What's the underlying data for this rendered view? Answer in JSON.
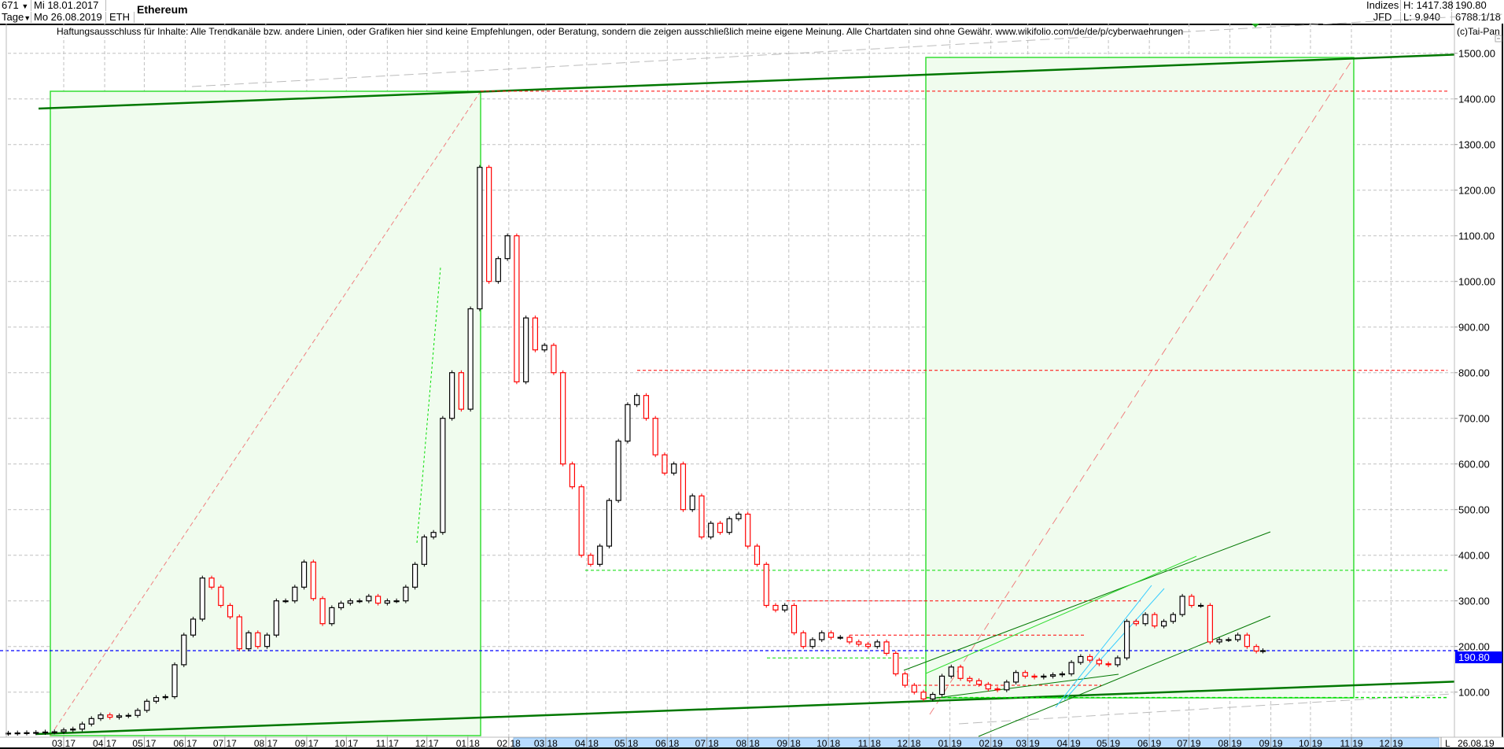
{
  "header": {
    "bars_count": "671",
    "period": "Tage",
    "start_date": "Mi 18.01.2017",
    "end_date": "Mo 26.08.2019",
    "symbol": "ETH",
    "name": "Ethereum",
    "market": "Indizes",
    "source": "JFD",
    "high": "H: 1417.38",
    "low": "L: 9.940",
    "last": "190.80",
    "info": "6788.1/18"
  },
  "disclaimer": "Haftungsausschluss für Inhalte: Alle Trendkanäle bzw. andere Linien, oder Grafiken hier sind keine Empfehlungen, oder Beratung, sondern die zeigen ausschließlich meine eigene Meinung. Alle Chartdaten sind ohne Gewähr.  www.wikifolio.com/de/de/p/cyberwaehrungen",
  "copyright": "(c)Tai-Pan",
  "axis_footer": {
    "mode": "L",
    "last_date": "26.08.19"
  },
  "colors": {
    "up": "#000000",
    "down": "#ff0000",
    "last_price": "#0000ff",
    "channel": "#007700",
    "box_fill": "#f0fcee",
    "box_edge": "#33dd33",
    "highlight": "#b8dcff",
    "cyan": "#33ccff"
  },
  "chart_data": {
    "type": "candlestick",
    "title": "Ethereum",
    "ylim": [
      0,
      1500
    ],
    "yticks": [
      100,
      200,
      300,
      400,
      500,
      600,
      700,
      800,
      900,
      1000,
      1100,
      1200,
      1300,
      1400,
      1500
    ],
    "ytick_labels": [
      "100.00",
      "200.00",
      "300.00",
      "400.00",
      "500.00",
      "600.00",
      "700.00",
      "800.00",
      "900.00",
      "1000.00",
      "1100.00",
      "1200.00",
      "1300.00",
      "1400.00",
      "1500.00"
    ],
    "xtick_dates": [
      "2017-03-01",
      "2017-04-01",
      "2017-05-01",
      "2017-06-01",
      "2017-07-01",
      "2017-08-01",
      "2017-09-01",
      "2017-10-01",
      "2017-11-01",
      "2017-12-01",
      "2018-01-01",
      "2018-02-01",
      "2018-03-01",
      "2018-04-01",
      "2018-05-01",
      "2018-06-01",
      "2018-07-01",
      "2018-08-01",
      "2018-09-01",
      "2018-10-01",
      "2018-11-01",
      "2018-12-01",
      "2019-01-01",
      "2019-02-01",
      "2019-03-01",
      "2019-04-01",
      "2019-05-01",
      "2019-06-01",
      "2019-07-01",
      "2019-08-01",
      "2019-09-01",
      "2019-10-01",
      "2019-11-01",
      "2019-12-01"
    ],
    "xtick_labels": [
      "03 17",
      "04 17",
      "05 17",
      "06 17",
      "07 17",
      "08 17",
      "09 17",
      "10 17",
      "11 17",
      "12 17",
      "01 18",
      "02 18",
      "03 18",
      "04 18",
      "05 18",
      "06 18",
      "07 18",
      "08 18",
      "09 18",
      "10 18",
      "11 18",
      "12 18",
      "01 19",
      "02 19",
      "03 19",
      "04 19",
      "05 19",
      "06 19",
      "07 19",
      "08 19",
      "09 19",
      "10 19",
      "11 19",
      "12 19"
    ],
    "grid": true,
    "last_price": 190.8,
    "last_price_label": "190.80",
    "reference_levels": {
      "red": [
        1417,
        805,
        300,
        225
      ],
      "green": [
        367,
        175,
        88
      ]
    },
    "x": [
      "2017-01-18",
      "2017-01-25",
      "2017-02-01",
      "2017-02-08",
      "2017-02-15",
      "2017-02-22",
      "2017-03-01",
      "2017-03-08",
      "2017-03-15",
      "2017-03-22",
      "2017-03-29",
      "2017-04-05",
      "2017-04-12",
      "2017-04-19",
      "2017-04-26",
      "2017-05-03",
      "2017-05-10",
      "2017-05-17",
      "2017-05-24",
      "2017-05-31",
      "2017-06-07",
      "2017-06-14",
      "2017-06-21",
      "2017-06-28",
      "2017-07-05",
      "2017-07-12",
      "2017-07-19",
      "2017-07-26",
      "2017-08-02",
      "2017-08-09",
      "2017-08-16",
      "2017-08-23",
      "2017-08-30",
      "2017-09-06",
      "2017-09-13",
      "2017-09-20",
      "2017-09-27",
      "2017-10-04",
      "2017-10-11",
      "2017-10-18",
      "2017-10-25",
      "2017-11-01",
      "2017-11-08",
      "2017-11-15",
      "2017-11-22",
      "2017-11-29",
      "2017-12-06",
      "2017-12-13",
      "2017-12-20",
      "2017-12-27",
      "2018-01-03",
      "2018-01-10",
      "2018-01-17",
      "2018-01-24",
      "2018-01-31",
      "2018-02-07",
      "2018-02-14",
      "2018-02-21",
      "2018-02-28",
      "2018-03-07",
      "2018-03-14",
      "2018-03-21",
      "2018-03-28",
      "2018-04-04",
      "2018-04-11",
      "2018-04-18",
      "2018-04-25",
      "2018-05-02",
      "2018-05-09",
      "2018-05-16",
      "2018-05-23",
      "2018-05-30",
      "2018-06-06",
      "2018-06-13",
      "2018-06-20",
      "2018-06-27",
      "2018-07-04",
      "2018-07-11",
      "2018-07-18",
      "2018-07-25",
      "2018-08-01",
      "2018-08-08",
      "2018-08-15",
      "2018-08-22",
      "2018-08-29",
      "2018-09-05",
      "2018-09-12",
      "2018-09-19",
      "2018-09-26",
      "2018-10-03",
      "2018-10-10",
      "2018-10-17",
      "2018-10-24",
      "2018-10-31",
      "2018-11-07",
      "2018-11-14",
      "2018-11-21",
      "2018-11-28",
      "2018-12-05",
      "2018-12-12",
      "2018-12-19",
      "2018-12-26",
      "2019-01-02",
      "2019-01-09",
      "2019-01-16",
      "2019-01-23",
      "2019-01-30",
      "2019-02-06",
      "2019-02-13",
      "2019-02-20",
      "2019-02-27",
      "2019-03-06",
      "2019-03-13",
      "2019-03-20",
      "2019-03-27",
      "2019-04-03",
      "2019-04-10",
      "2019-04-17",
      "2019-04-24",
      "2019-05-01",
      "2019-05-08",
      "2019-05-15",
      "2019-05-22",
      "2019-05-29",
      "2019-06-05",
      "2019-06-12",
      "2019-06-19",
      "2019-06-26",
      "2019-07-03",
      "2019-07-10",
      "2019-07-17",
      "2019-07-24",
      "2019-07-31",
      "2019-08-07",
      "2019-08-14",
      "2019-08-21",
      "2019-08-26"
    ],
    "close": [
      10,
      10.5,
      11,
      11.5,
      12.5,
      13,
      17,
      19,
      30,
      42,
      50,
      45,
      48,
      49,
      60,
      80,
      88,
      90,
      160,
      225,
      260,
      350,
      330,
      290,
      265,
      195,
      230,
      200,
      225,
      300,
      300,
      330,
      385,
      305,
      250,
      285,
      295,
      300,
      300,
      310,
      295,
      300,
      300,
      330,
      380,
      440,
      450,
      700,
      800,
      720,
      940,
      1250,
      1000,
      1050,
      1100,
      780,
      920,
      850,
      860,
      800,
      600,
      550,
      400,
      380,
      420,
      520,
      650,
      730,
      750,
      700,
      620,
      580,
      600,
      500,
      530,
      440,
      470,
      450,
      480,
      490,
      420,
      380,
      290,
      280,
      290,
      230,
      200,
      215,
      230,
      220,
      220,
      210,
      205,
      200,
      210,
      185,
      140,
      115,
      100,
      85,
      95,
      135,
      155,
      130,
      125,
      117,
      107,
      105,
      122,
      143,
      135,
      133,
      135,
      138,
      140,
      165,
      178,
      170,
      162,
      160,
      175,
      255,
      250,
      270,
      245,
      255,
      270,
      310,
      290,
      290,
      210,
      215,
      215,
      225,
      200,
      190,
      190.8
    ]
  }
}
